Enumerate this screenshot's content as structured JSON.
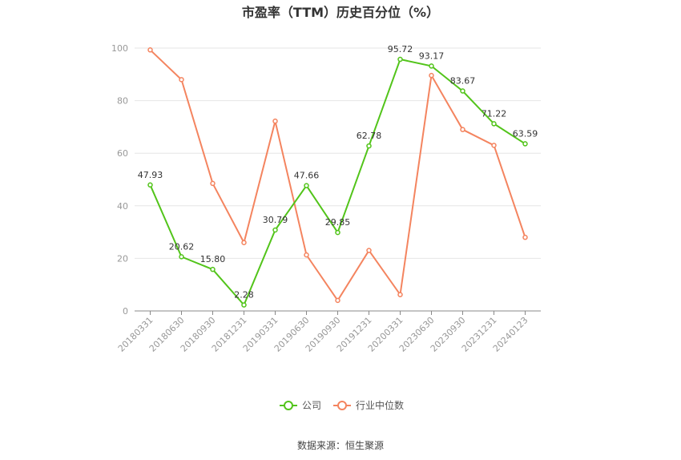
{
  "chart_data": {
    "type": "line",
    "title": "市盈率（TTM）历史百分位（%）",
    "xlabel": "",
    "ylabel": "",
    "ylim": [
      0,
      100
    ],
    "yticks": [
      0,
      20,
      40,
      60,
      80,
      100
    ],
    "grid": true,
    "legend_position": "bottom",
    "categories": [
      "20180331",
      "20180630",
      "20180930",
      "20181231",
      "20190331",
      "20190630",
      "20190930",
      "20191231",
      "20200331",
      "20230630",
      "20230930",
      "20231231",
      "20240123"
    ],
    "series": [
      {
        "name": "公司",
        "color": "#52c41a",
        "show_labels": true,
        "values": [
          47.93,
          20.62,
          15.8,
          2.28,
          30.79,
          47.66,
          29.85,
          62.78,
          95.72,
          93.17,
          83.67,
          71.22,
          63.59
        ],
        "labels": [
          "47.93",
          "20.62",
          "15.80",
          "2.28",
          "30.79",
          "47.66",
          "29.85",
          "62.78",
          "95.72",
          "93.17",
          "83.67",
          "71.22",
          "63.59"
        ]
      },
      {
        "name": "行业中位数",
        "color": "#f4845f",
        "show_labels": false,
        "values": [
          99.3,
          88.0,
          48.5,
          26.0,
          72.2,
          21.3,
          4.0,
          23.0,
          6.2,
          89.6,
          69.0,
          63.0,
          28.0
        ]
      }
    ],
    "source": "数据来源：恒生聚源"
  }
}
